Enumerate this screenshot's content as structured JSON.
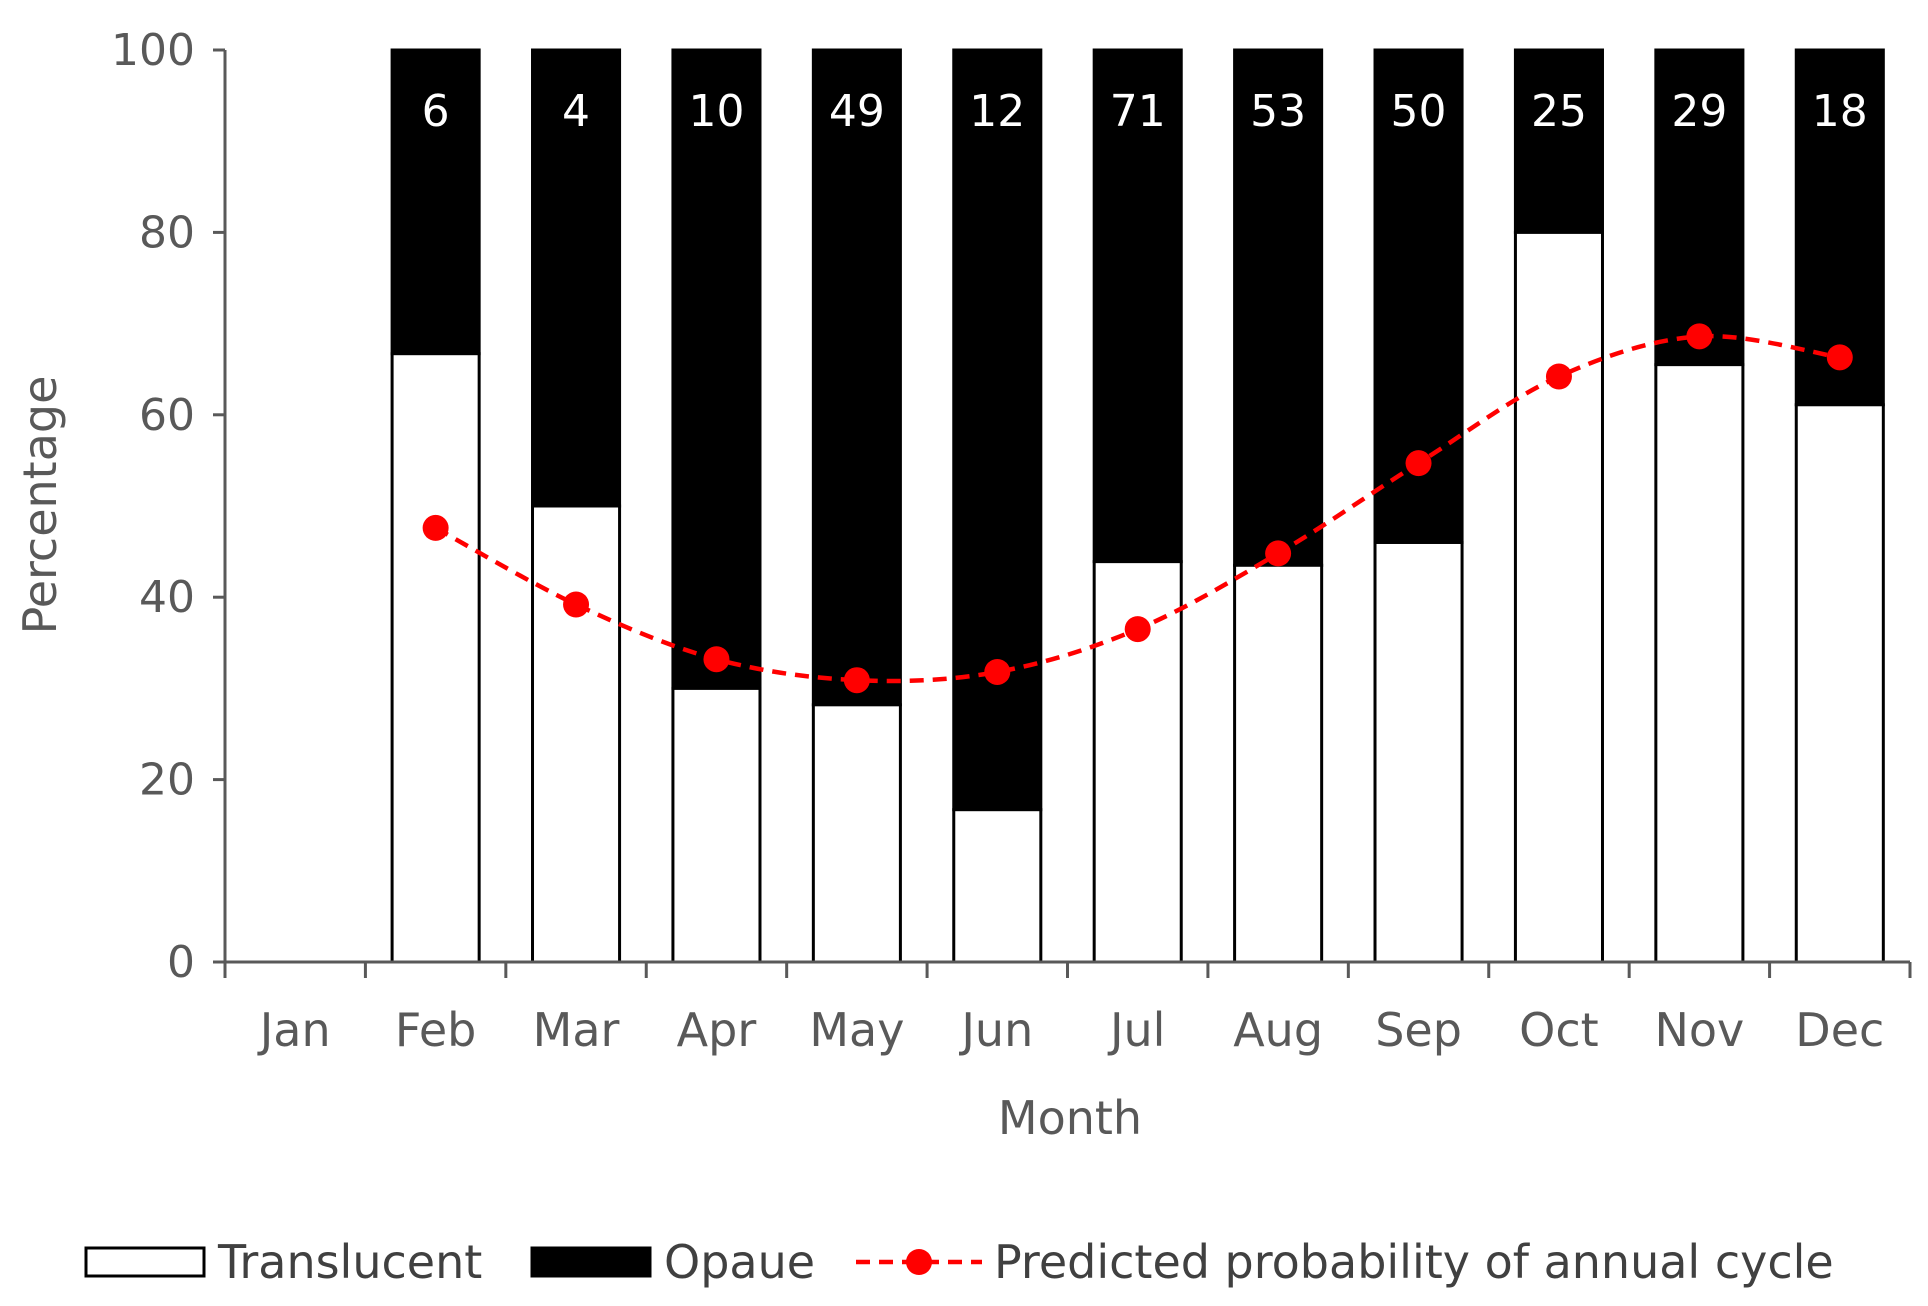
{
  "chart_data": {
    "type": "bar",
    "stacked": true,
    "categories": [
      "Jan",
      "Feb",
      "Mar",
      "Apr",
      "May",
      "Jun",
      "Jul",
      "Aug",
      "Sep",
      "Oct",
      "Nov",
      "Dec"
    ],
    "series": [
      {
        "name": "Translucent",
        "kind": "bar",
        "color": "#ffffff",
        "values": [
          null,
          66.7,
          50,
          30,
          28.2,
          16.7,
          43.9,
          43.5,
          46,
          80,
          65.5,
          61.1
        ]
      },
      {
        "name": "Opaue",
        "kind": "bar",
        "color": "#000000",
        "values": [
          null,
          33.3,
          50,
          70,
          71.8,
          83.3,
          56.1,
          56.5,
          54,
          20,
          34.5,
          38.9
        ]
      },
      {
        "name": "Predicted probability of annual cycle",
        "kind": "line",
        "style": "dashed",
        "marker": "circle",
        "color": "#ff0000",
        "values": [
          null,
          47.6,
          39.2,
          33.2,
          30.9,
          31.8,
          36.5,
          44.8,
          54.7,
          64.2,
          68.6,
          66.3
        ]
      }
    ],
    "data_labels": [
      "",
      "6",
      "4",
      "10",
      "49",
      "12",
      "71",
      "53",
      "50",
      "25",
      "29",
      "18"
    ],
    "xlabel": "Month",
    "ylabel": "Percentage",
    "ylim": [
      0,
      100
    ],
    "yticks": [
      "0",
      "20",
      "40",
      "60",
      "80",
      "100"
    ],
    "grid": false,
    "legend": {
      "position": "bottom",
      "items": [
        {
          "label": "Translucent",
          "swatch": "white-box"
        },
        {
          "label": "Opaue",
          "swatch": "black-box"
        },
        {
          "label": "Predicted probability of annual cycle",
          "swatch": "red-dashed-line-circle"
        }
      ]
    }
  }
}
